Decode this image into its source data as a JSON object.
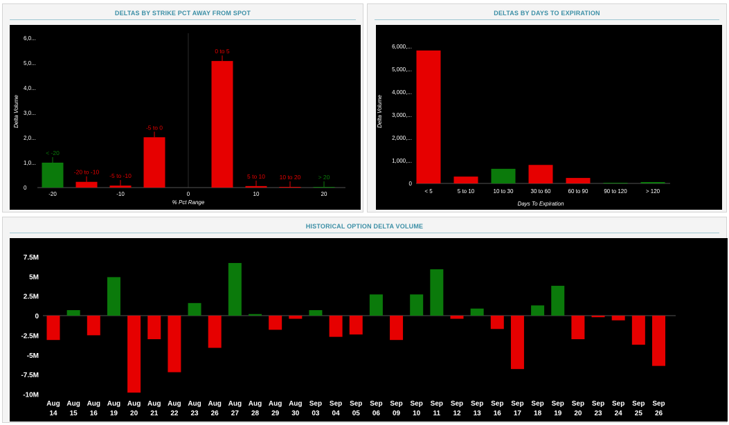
{
  "panels": {
    "strike_title": "DELTAS BY STRIKE PCT AWAY FROM SPOT",
    "expiry_title": "DELTAS BY DAYS TO EXPIRATION",
    "history_title": "HISTORICAL OPTION DELTA VOLUME"
  },
  "colors": {
    "positive": "#0b7a0b",
    "negative": "#e60000",
    "background": "#000000",
    "title": "#3c8fa6"
  },
  "chart_data": [
    {
      "type": "bar",
      "title": "DELTAS BY STRIKE PCT AWAY FROM SPOT",
      "xlabel": "% Pct Range",
      "ylabel": "Delta Volume",
      "x_ticks": [
        "-20",
        "-10",
        "0",
        "10",
        "20"
      ],
      "y_ticks": [
        "0",
        "1,0...",
        "2,0...",
        "3,0...",
        "4,0...",
        "5,0...",
        "6,0..."
      ],
      "ylim": [
        0,
        6000000
      ],
      "bars": [
        {
          "label": "< -20",
          "x": -20,
          "value": 1000000,
          "sign": "positive"
        },
        {
          "label": "-20 to -10",
          "x": -15,
          "value": 230000,
          "sign": "negative"
        },
        {
          "label": "-5 to -10",
          "x": -10,
          "value": 80000,
          "sign": "negative"
        },
        {
          "label": "-5 to 0",
          "x": -5,
          "value": 2020000,
          "sign": "negative"
        },
        {
          "label": "0 to 5",
          "x": 5,
          "value": 5080000,
          "sign": "negative"
        },
        {
          "label": "5 to 10",
          "x": 10,
          "value": 60000,
          "sign": "negative"
        },
        {
          "label": "10 to 20",
          "x": 15,
          "value": 20000,
          "sign": "negative"
        },
        {
          "label": "> 20",
          "x": 20,
          "value": 15000,
          "sign": "positive"
        }
      ],
      "grid": false
    },
    {
      "type": "bar",
      "title": "DELTAS BY DAYS TO EXPIRATION",
      "xlabel": "Days To Expiration",
      "ylabel": "Delta Volume",
      "y_ticks": [
        "0",
        "1,000,...",
        "2,000,...",
        "3,000,...",
        "4,000,...",
        "5,000,...",
        "6,000,..."
      ],
      "ylim": [
        0,
        6000000
      ],
      "categories": [
        "< 5",
        "5 to 10",
        "10 to 30",
        "30 to 60",
        "60 to 90",
        "90 to 120",
        "> 120"
      ],
      "values": [
        5820000,
        300000,
        640000,
        810000,
        240000,
        30000,
        60000
      ],
      "signs": [
        "negative",
        "negative",
        "positive",
        "negative",
        "negative",
        "positive",
        "positive"
      ],
      "grid": false
    },
    {
      "type": "bar",
      "title": "HISTORICAL OPTION DELTA VOLUME",
      "y_ticks": [
        "7.5M",
        "5M",
        "2.5M",
        "0",
        "-2.5M",
        "-5M",
        "-7.5M",
        "-10M"
      ],
      "ylim": [
        -10000000,
        7500000
      ],
      "categories": [
        [
          "Aug",
          "14"
        ],
        [
          "Aug",
          "15"
        ],
        [
          "Aug",
          "16"
        ],
        [
          "Aug",
          "19"
        ],
        [
          "Aug",
          "20"
        ],
        [
          "Aug",
          "21"
        ],
        [
          "Aug",
          "22"
        ],
        [
          "Aug",
          "23"
        ],
        [
          "Aug",
          "26"
        ],
        [
          "Aug",
          "27"
        ],
        [
          "Aug",
          "28"
        ],
        [
          "Aug",
          "29"
        ],
        [
          "Aug",
          "30"
        ],
        [
          "Sep",
          "03"
        ],
        [
          "Sep",
          "04"
        ],
        [
          "Sep",
          "05"
        ],
        [
          "Sep",
          "06"
        ],
        [
          "Sep",
          "09"
        ],
        [
          "Sep",
          "10"
        ],
        [
          "Sep",
          "11"
        ],
        [
          "Sep",
          "12"
        ],
        [
          "Sep",
          "13"
        ],
        [
          "Sep",
          "16"
        ],
        [
          "Sep",
          "17"
        ],
        [
          "Sep",
          "18"
        ],
        [
          "Sep",
          "19"
        ],
        [
          "Sep",
          "20"
        ],
        [
          "Sep",
          "23"
        ],
        [
          "Sep",
          "24"
        ],
        [
          "Sep",
          "25"
        ],
        [
          "Sep",
          "26"
        ]
      ],
      "values": [
        -3100000,
        700000,
        -2500000,
        4900000,
        -9800000,
        -3000000,
        -7200000,
        1600000,
        -4100000,
        6700000,
        200000,
        -1800000,
        -400000,
        700000,
        -2700000,
        -2400000,
        2700000,
        -3100000,
        2700000,
        5900000,
        -400000,
        900000,
        -1700000,
        -6800000,
        1300000,
        3800000,
        -3000000,
        -200000,
        -600000,
        -3700000,
        -6400000
      ],
      "grid": false
    }
  ]
}
